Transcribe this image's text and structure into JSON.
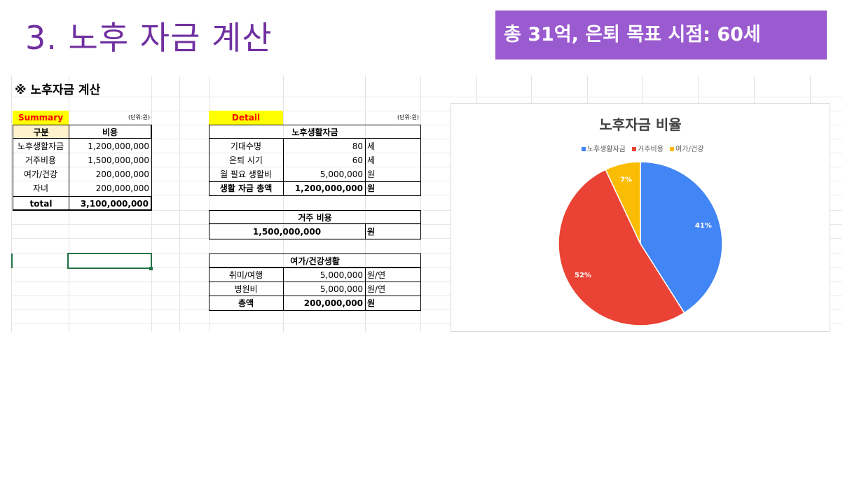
{
  "slide": {
    "title": "3. 노후 자금 계산",
    "banner": "총 31억, 은퇴 목표 시점: 60세"
  },
  "sheet": {
    "heading": "※ 노후자금 계산",
    "summary": {
      "label": "Summary",
      "unit": "(단위:원)",
      "headers": [
        "구분",
        "비용"
      ],
      "rows": [
        {
          "name": "노후생활자금",
          "value": "1,200,000,000"
        },
        {
          "name": "거주비용",
          "value": "1,500,000,000"
        },
        {
          "name": "여가/건강",
          "value": "200,000,000"
        },
        {
          "name": "자녀",
          "value": "200,000,000"
        }
      ],
      "total_label": "total",
      "total_value": "3,100,000,000"
    },
    "detail": {
      "label": "Detail",
      "unit": "(단위:원)",
      "living": {
        "title": "노후생활자금",
        "rows": [
          {
            "name": "기대수명",
            "value": "80",
            "unit": "세"
          },
          {
            "name": "은퇴 시기",
            "value": "60",
            "unit": "세"
          },
          {
            "name": "월 필요 생활비",
            "value": "5,000,000",
            "unit": "원"
          },
          {
            "name": "생활 자금 총액",
            "value": "1,200,000,000",
            "unit": "원"
          }
        ]
      },
      "housing": {
        "title": "거주 비용",
        "value": "1,500,000,000",
        "unit": "원"
      },
      "leisure": {
        "title": "여가/건강생활",
        "rows": [
          {
            "name": "취미/여행",
            "value": "5,000,000",
            "unit": "원/연"
          },
          {
            "name": "병원비",
            "value": "5,000,000",
            "unit": "원/연"
          },
          {
            "name": "총액",
            "value": "200,000,000",
            "unit": "원"
          }
        ]
      }
    }
  },
  "chart_data": {
    "type": "pie",
    "title": "노후자금 비율",
    "legend_position": "top",
    "categories": [
      "노후생활자금",
      "거주비용",
      "여가/건강"
    ],
    "values": [
      41,
      52,
      7
    ],
    "labels": [
      "41%",
      "52%",
      "7%"
    ],
    "colors": [
      "#4285F4",
      "#EA4335",
      "#FBBC04"
    ]
  }
}
